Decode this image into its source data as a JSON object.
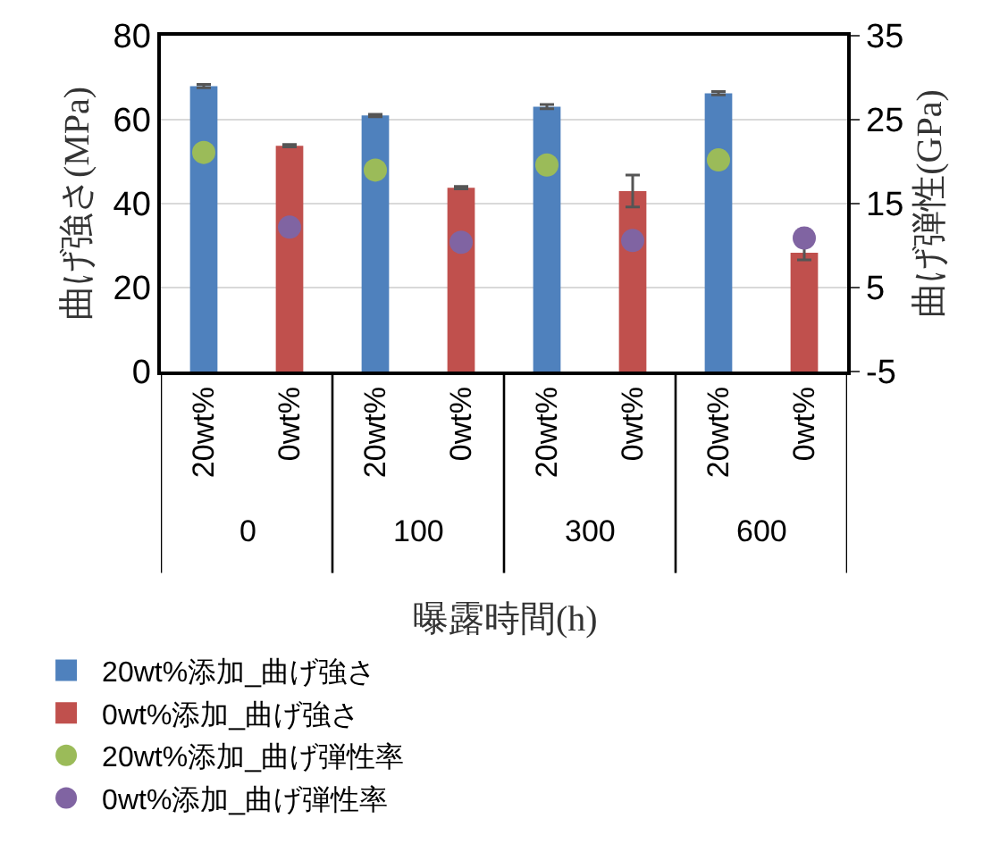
{
  "chart_data": {
    "type": "bar",
    "xlabel": "曝露時間(h)",
    "ylabel": "曲げ強さ(MPa)",
    "y2label": "曲げ弾性(GPa)",
    "categories": [
      "20wt%",
      "0wt%",
      "20wt%",
      "0wt%",
      "20wt%",
      "0wt%",
      "20wt%",
      "0wt%"
    ],
    "annotations": [
      "0",
      "100",
      "300",
      "600"
    ],
    "series": [
      {
        "name": "20wt%添加_曲げ強さ",
        "color": "#4f81bd",
        "values": [
          68,
          null,
          61,
          null,
          63.1,
          null,
          66.3,
          null
        ],
        "errors": [
          0.4,
          null,
          0.3,
          null,
          0.5,
          null,
          0.4,
          null
        ]
      },
      {
        "name": "0wt%添加_曲げ強さ",
        "color": "#c0504d",
        "values": [
          null,
          53.8,
          null,
          43.8,
          null,
          43,
          null,
          28.3
        ],
        "errors": [
          null,
          0.3,
          null,
          0.3,
          null,
          3.8,
          null,
          1.7
        ]
      },
      {
        "name": "20wt%添加_曲げ弾性率",
        "type": "scatter",
        "axis": "y2",
        "color": "#9bbb59",
        "values": [
          21.1,
          null,
          19,
          null,
          19.6,
          null,
          20.2,
          null
        ]
      },
      {
        "name": "0wt%添加_曲げ弾性率",
        "type": "scatter",
        "axis": "y2",
        "color": "#8064a2",
        "values": [
          null,
          12.2,
          null,
          10.4,
          null,
          10.6,
          null,
          10.9
        ]
      }
    ],
    "ylim": [
      0,
      80
    ],
    "yticks": [
      0,
      20,
      40,
      60,
      80
    ],
    "y2lim": [
      -5,
      35
    ],
    "y2ticks": [
      -5,
      5,
      15,
      25,
      35
    ],
    "grid": "y",
    "legend": "bottom",
    "marker": "circle"
  }
}
